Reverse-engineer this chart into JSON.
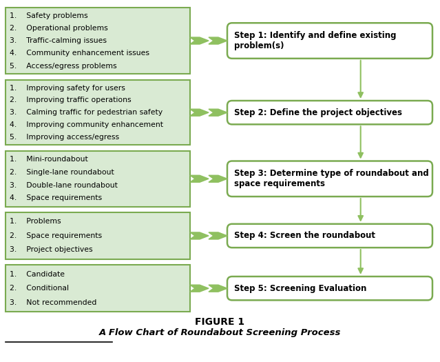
{
  "title": "FIGURE 1",
  "subtitle": "A Flow Chart of Roundabout Screening Process",
  "left_boxes": [
    {
      "items": [
        "1.    Safety problems",
        "2.    Operational problems",
        "3.    Traffic-calming issues",
        "4.    Community enhancement issues",
        "5.    Access/egress problems"
      ]
    },
    {
      "items": [
        "1.    Improving safety for users",
        "2.    Improving traffic operations",
        "3.    Calming traffic for pedestrian safety",
        "4.    Improving community enhancement",
        "5.    Improving access/egress"
      ]
    },
    {
      "items": [
        "1.    Mini-roundabout",
        "2.    Single-lane roundabout",
        "3.    Double-lane roundabout",
        "4.    Space requirements"
      ]
    },
    {
      "items": [
        "1.    Problems",
        "2.    Space requirements",
        "3.    Project objectives"
      ]
    },
    {
      "items": [
        "1.    Candidate",
        "2.    Conditional",
        "3.    Not recommended"
      ]
    }
  ],
  "right_boxes": [
    "Step 1: Identify and define existing\nproblem(s)",
    "Step 2: Define the project objectives",
    "Step 3: Determine type of roundabout and\nspace requirements",
    "Step 4: Screen the roundabout",
    "Step 5: Screening Evaluation"
  ],
  "left_box_color": "#d9ead3",
  "left_box_edge": "#7aaa50",
  "right_box_color": "#ffffff",
  "right_box_edge": "#7aaa50",
  "arrow_color": "#8fc060",
  "text_color": "#000000",
  "bg_color": "#ffffff",
  "fig_width": 6.39,
  "fig_height": 5.25,
  "dpi": 100
}
